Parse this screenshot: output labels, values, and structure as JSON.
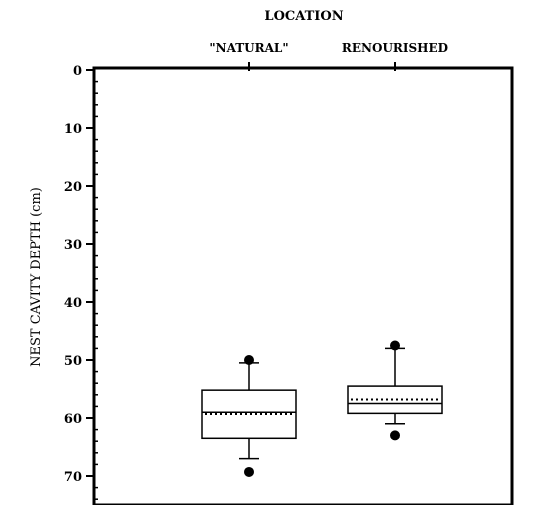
{
  "chart_data": {
    "type": "box",
    "title": "LOCATION",
    "xlabel": "",
    "ylabel": "NEST CAVITY DEPTH (cm)",
    "ylim": [
      0,
      75
    ],
    "y_inverted": true,
    "x_axis_position": "top",
    "yticks": [
      0,
      10,
      20,
      30,
      40,
      50,
      60,
      70
    ],
    "categories": [
      "\"NATURAL\"",
      "RENOURISHED"
    ],
    "boxes": [
      {
        "category": "\"NATURAL\"",
        "whisker_low": 50.5,
        "q1": 55.2,
        "median": 59.0,
        "mean": 59.3,
        "q3": 63.5,
        "whisker_high": 67.0,
        "outliers": [
          50.0,
          69.3
        ]
      },
      {
        "category": "RENOURISHED",
        "whisker_low": 48.0,
        "q1": 54.5,
        "median": 57.5,
        "mean": 56.8,
        "q3": 59.2,
        "whisker_high": 61.0,
        "outliers": [
          47.5,
          63.0
        ]
      }
    ],
    "grid": false,
    "legend": "none",
    "colors": {
      "line": "#000000",
      "background": "#ffffff"
    }
  }
}
